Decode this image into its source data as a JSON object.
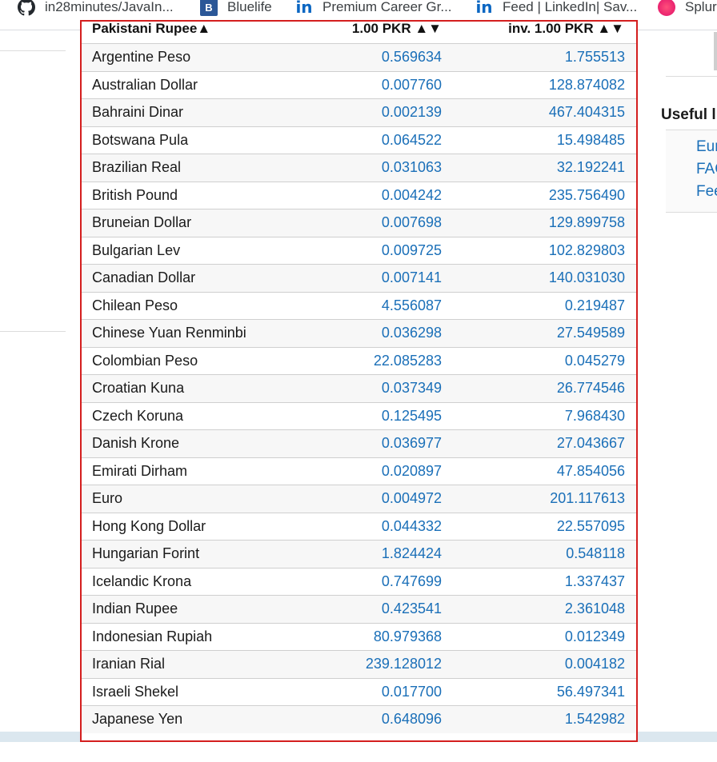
{
  "bookmarks": [
    {
      "label": "in28minutes/JavaIn...",
      "icon": "github-icon"
    },
    {
      "label": "Bluelife",
      "icon": "bluelife-icon",
      "glyph": "B"
    },
    {
      "label": "Premium Career Gr...",
      "icon": "linkedin-icon",
      "glyph": "in"
    },
    {
      "label": "Feed | LinkedIn| Sav...",
      "icon": "linkedin-icon",
      "glyph": "in"
    },
    {
      "label": "Splur",
      "icon": "splunk-icon"
    }
  ],
  "table": {
    "headers": {
      "currency": "Pakistani Rupee",
      "currency_sort": "▲",
      "rate": "1.00 PKR",
      "rate_sort": "▲▼",
      "inverse": "inv. 1.00 PKR",
      "inverse_sort": "▲▼"
    },
    "rows": [
      {
        "name": "Argentine Peso",
        "rate": "0.569634",
        "inverse": "1.755513"
      },
      {
        "name": "Australian Dollar",
        "rate": "0.007760",
        "inverse": "128.874082"
      },
      {
        "name": "Bahraini Dinar",
        "rate": "0.002139",
        "inverse": "467.404315"
      },
      {
        "name": "Botswana Pula",
        "rate": "0.064522",
        "inverse": "15.498485"
      },
      {
        "name": "Brazilian Real",
        "rate": "0.031063",
        "inverse": "32.192241"
      },
      {
        "name": "British Pound",
        "rate": "0.004242",
        "inverse": "235.756490"
      },
      {
        "name": "Bruneian Dollar",
        "rate": "0.007698",
        "inverse": "129.899758"
      },
      {
        "name": "Bulgarian Lev",
        "rate": "0.009725",
        "inverse": "102.829803"
      },
      {
        "name": "Canadian Dollar",
        "rate": "0.007141",
        "inverse": "140.031030"
      },
      {
        "name": "Chilean Peso",
        "rate": "4.556087",
        "inverse": "0.219487"
      },
      {
        "name": "Chinese Yuan Renminbi",
        "rate": "0.036298",
        "inverse": "27.549589"
      },
      {
        "name": "Colombian Peso",
        "rate": "22.085283",
        "inverse": "0.045279"
      },
      {
        "name": "Croatian Kuna",
        "rate": "0.037349",
        "inverse": "26.774546"
      },
      {
        "name": "Czech Koruna",
        "rate": "0.125495",
        "inverse": "7.968430"
      },
      {
        "name": "Danish Krone",
        "rate": "0.036977",
        "inverse": "27.043667"
      },
      {
        "name": "Emirati Dirham",
        "rate": "0.020897",
        "inverse": "47.854056"
      },
      {
        "name": "Euro",
        "rate": "0.004972",
        "inverse": "201.117613"
      },
      {
        "name": "Hong Kong Dollar",
        "rate": "0.044332",
        "inverse": "22.557095"
      },
      {
        "name": "Hungarian Forint",
        "rate": "1.824424",
        "inverse": "0.548118"
      },
      {
        "name": "Icelandic Krona",
        "rate": "0.747699",
        "inverse": "1.337437"
      },
      {
        "name": "Indian Rupee",
        "rate": "0.423541",
        "inverse": "2.361048"
      },
      {
        "name": "Indonesian Rupiah",
        "rate": "80.979368",
        "inverse": "0.012349"
      },
      {
        "name": "Iranian Rial",
        "rate": "239.128012",
        "inverse": "0.004182"
      },
      {
        "name": "Israeli Shekel",
        "rate": "0.017700",
        "inverse": "56.497341"
      },
      {
        "name": "Japanese Yen",
        "rate": "0.648096",
        "inverse": "1.542982"
      }
    ]
  },
  "sidebar": {
    "useful_title": "Useful l",
    "links": [
      "Eur",
      "FAC",
      "Fee"
    ]
  },
  "colors": {
    "highlight_border": "#d41e1e",
    "link_blue": "#1a6fb8"
  }
}
